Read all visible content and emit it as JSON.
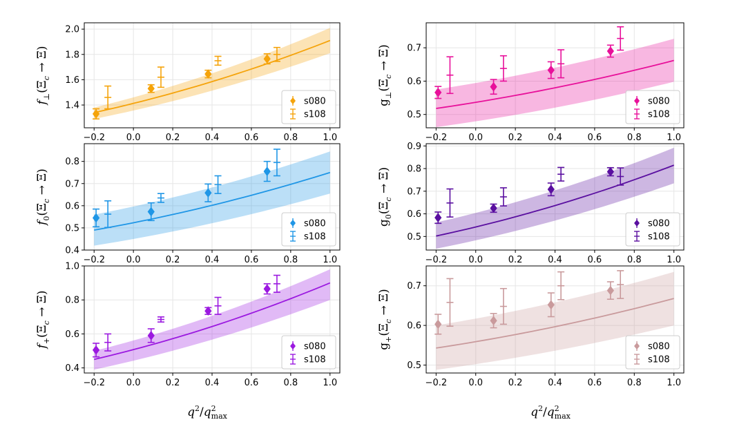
{
  "figure": {
    "x_axis_label": "q²/q²max",
    "x_label_main": "q",
    "x_label_sup": "2",
    "x_label_slash": "/",
    "x_label_sub": "max"
  },
  "chart_data": [
    {
      "type": "line",
      "id": "f_perp",
      "ylabel": "f⊥(Ξc → Ξ)",
      "label_sym": "f",
      "label_sub": "⊥",
      "label_body": "(Ξ",
      "label_body_sub": "c",
      "label_tail": " → Ξ)",
      "color": "#f5a30a",
      "xlim": [
        -0.25,
        1.05
      ],
      "ylim": [
        1.22,
        2.05
      ],
      "xticks": [
        -0.2,
        0.0,
        0.2,
        0.4,
        0.6,
        0.8,
        1.0
      ],
      "yticks": [
        1.4,
        1.6,
        1.8,
        2.0
      ],
      "fit": {
        "x": [
          -0.2,
          1.0
        ],
        "y0": 1.34,
        "y1": 1.91,
        "band_lo0": 1.29,
        "band_lo1": 1.81,
        "band_hi0": 1.38,
        "band_hi1": 2.01
      },
      "series": [
        {
          "name": "s080",
          "marker": "diamond",
          "x": [
            -0.19,
            0.09,
            0.38,
            0.68
          ],
          "y": [
            1.33,
            1.53,
            1.645,
            1.765
          ],
          "err": [
            0.04,
            0.03,
            0.03,
            0.04
          ]
        },
        {
          "name": "s108",
          "marker": "cap",
          "x": [
            -0.13,
            0.14,
            0.43,
            0.73
          ],
          "y": [
            1.46,
            1.62,
            1.75,
            1.8
          ],
          "err": [
            0.09,
            0.08,
            0.035,
            0.055
          ]
        }
      ],
      "legend": [
        "s080",
        "s108"
      ]
    },
    {
      "type": "line",
      "id": "g_perp",
      "ylabel": "g⊥(Ξc → Ξ)",
      "label_sym": "g",
      "label_sub": "⊥",
      "label_body": "(Ξ",
      "label_body_sub": "c",
      "label_tail": " → Ξ)",
      "color": "#e8109a",
      "xlim": [
        -0.25,
        1.05
      ],
      "ylim": [
        0.46,
        0.775
      ],
      "xticks": [
        -0.2,
        0.0,
        0.2,
        0.4,
        0.6,
        0.8,
        1.0
      ],
      "yticks": [
        0.5,
        0.6,
        0.7
      ],
      "fit": {
        "x": [
          -0.2,
          1.0
        ],
        "y0": 0.518,
        "y1": 0.662,
        "band_lo0": 0.462,
        "band_lo1": 0.598,
        "band_hi0": 0.575,
        "band_hi1": 0.727
      },
      "series": [
        {
          "name": "s080",
          "marker": "diamond",
          "x": [
            -0.19,
            0.09,
            0.38,
            0.68
          ],
          "y": [
            0.566,
            0.583,
            0.633,
            0.69
          ],
          "err": [
            0.018,
            0.022,
            0.025,
            0.018
          ]
        },
        {
          "name": "s108",
          "marker": "cap",
          "x": [
            -0.13,
            0.14,
            0.43,
            0.73
          ],
          "y": [
            0.618,
            0.638,
            0.652,
            0.728
          ],
          "err": [
            0.055,
            0.038,
            0.042,
            0.035
          ]
        }
      ],
      "legend": [
        "s080",
        "s108"
      ]
    },
    {
      "type": "line",
      "id": "f_0",
      "ylabel": "f0(Ξc → Ξ)",
      "label_sym": "f",
      "label_sub": "0",
      "label_body": "(Ξ",
      "label_body_sub": "c",
      "label_tail": " → Ξ)",
      "color": "#1f96e6",
      "xlim": [
        -0.25,
        1.05
      ],
      "ylim": [
        0.4,
        0.88
      ],
      "xticks": [
        -0.2,
        0.0,
        0.2,
        0.4,
        0.6,
        0.8,
        1.0
      ],
      "yticks": [
        0.4,
        0.5,
        0.6,
        0.7,
        0.8
      ],
      "fit": {
        "x": [
          -0.2,
          1.0
        ],
        "y0": 0.49,
        "y1": 0.75,
        "band_lo0": 0.42,
        "band_lo1": 0.655,
        "band_hi0": 0.56,
        "band_hi1": 0.845
      },
      "series": [
        {
          "name": "s080",
          "marker": "diamond",
          "x": [
            -0.19,
            0.09,
            0.38,
            0.68
          ],
          "y": [
            0.545,
            0.573,
            0.658,
            0.755
          ],
          "err": [
            0.04,
            0.04,
            0.04,
            0.045
          ]
        },
        {
          "name": "s108",
          "marker": "cap",
          "x": [
            -0.13,
            0.14,
            0.43,
            0.73
          ],
          "y": [
            0.562,
            0.635,
            0.695,
            0.795
          ],
          "err": [
            0.06,
            0.02,
            0.04,
            0.06
          ]
        }
      ],
      "legend": [
        "s080",
        "s108"
      ]
    },
    {
      "type": "line",
      "id": "g_0",
      "ylabel": "g0(Ξc → Ξ)",
      "label_sym": "g",
      "label_sub": "0",
      "label_body": "(Ξ",
      "label_body_sub": "c",
      "label_tail": " → Ξ)",
      "color": "#5a0fa0",
      "xlim": [
        -0.25,
        1.05
      ],
      "ylim": [
        0.44,
        0.91
      ],
      "xticks": [
        -0.2,
        0.0,
        0.2,
        0.4,
        0.6,
        0.8,
        1.0
      ],
      "yticks": [
        0.5,
        0.6,
        0.7,
        0.8,
        0.9
      ],
      "fit": {
        "x": [
          -0.2,
          1.0
        ],
        "y0": 0.502,
        "y1": 0.815,
        "band_lo0": 0.446,
        "band_lo1": 0.735,
        "band_hi0": 0.562,
        "band_hi1": 0.892
      },
      "series": [
        {
          "name": "s080",
          "marker": "diamond",
          "x": [
            -0.19,
            0.09,
            0.38,
            0.68
          ],
          "y": [
            0.583,
            0.625,
            0.708,
            0.786
          ],
          "err": [
            0.025,
            0.018,
            0.028,
            0.018
          ]
        },
        {
          "name": "s108",
          "marker": "cap",
          "x": [
            -0.13,
            0.14,
            0.43,
            0.73
          ],
          "y": [
            0.648,
            0.675,
            0.775,
            0.765
          ],
          "err": [
            0.062,
            0.04,
            0.03,
            0.038
          ]
        }
      ],
      "legend": [
        "s080",
        "s108"
      ]
    },
    {
      "type": "line",
      "id": "f_plus",
      "ylabel": "f+(Ξc → Ξ)",
      "label_sym": "f",
      "label_sub": "+",
      "label_body": "(Ξ",
      "label_body_sub": "c",
      "label_tail": " → Ξ)",
      "color": "#9b19e0",
      "xlim": [
        -0.25,
        1.05
      ],
      "ylim": [
        0.37,
        1.0
      ],
      "xticks": [
        -0.2,
        0.0,
        0.2,
        0.4,
        0.6,
        0.8,
        1.0
      ],
      "yticks": [
        0.4,
        0.6,
        0.8,
        1.0
      ],
      "fit": {
        "x": [
          -0.2,
          1.0
        ],
        "y0": 0.45,
        "y1": 0.9,
        "band_lo0": 0.39,
        "band_lo1": 0.8,
        "band_hi0": 0.5,
        "band_hi1": 0.98
      },
      "series": [
        {
          "name": "s080",
          "marker": "diamond",
          "x": [
            -0.19,
            0.09,
            0.38,
            0.68
          ],
          "y": [
            0.505,
            0.59,
            0.735,
            0.865
          ],
          "err": [
            0.04,
            0.04,
            0.02,
            0.03
          ]
        },
        {
          "name": "s108",
          "marker": "cap",
          "x": [
            -0.13,
            0.14,
            0.43,
            0.73
          ],
          "y": [
            0.55,
            0.685,
            0.765,
            0.895
          ],
          "err": [
            0.05,
            0.015,
            0.05,
            0.05
          ]
        }
      ],
      "legend": [
        "s080",
        "s108"
      ]
    },
    {
      "type": "line",
      "id": "g_plus",
      "ylabel": "g+(Ξc → Ξ)",
      "label_sym": "g",
      "label_sub": "+",
      "label_body": "(Ξ",
      "label_body_sub": "c",
      "label_tail": " → Ξ)",
      "color": "#c99a9c",
      "xlim": [
        -0.25,
        1.05
      ],
      "ylim": [
        0.48,
        0.75
      ],
      "xticks": [
        -0.2,
        0.0,
        0.2,
        0.4,
        0.6,
        0.8,
        1.0
      ],
      "yticks": [
        0.5,
        0.6,
        0.7
      ],
      "fit": {
        "x": [
          -0.2,
          1.0
        ],
        "y0": 0.543,
        "y1": 0.668,
        "band_lo0": 0.488,
        "band_lo1": 0.6,
        "band_hi0": 0.6,
        "band_hi1": 0.735
      },
      "series": [
        {
          "name": "s080",
          "marker": "diamond",
          "x": [
            -0.19,
            0.09,
            0.38,
            0.68
          ],
          "y": [
            0.603,
            0.612,
            0.652,
            0.688
          ],
          "err": [
            0.025,
            0.018,
            0.03,
            0.022
          ]
        },
        {
          "name": "s108",
          "marker": "cap",
          "x": [
            -0.13,
            0.14,
            0.43,
            0.73
          ],
          "y": [
            0.658,
            0.648,
            0.7,
            0.703
          ],
          "err": [
            0.06,
            0.045,
            0.035,
            0.035
          ]
        }
      ],
      "legend": [
        "s080",
        "s108"
      ]
    }
  ]
}
